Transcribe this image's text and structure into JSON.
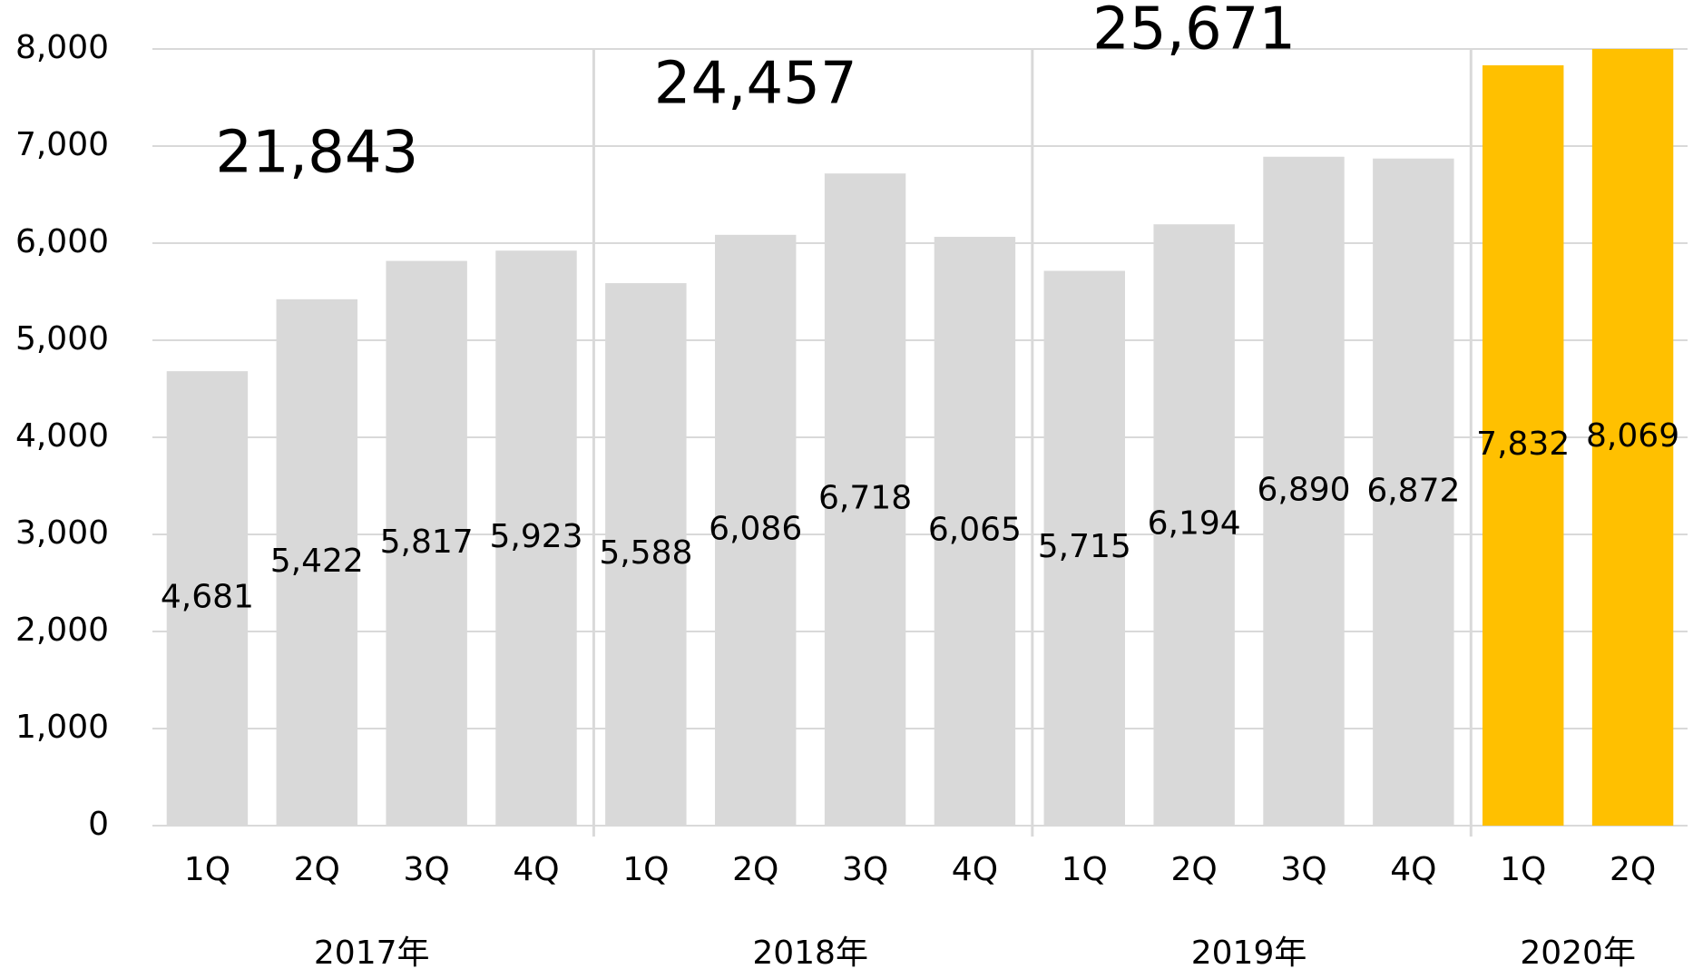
{
  "chart_data": {
    "type": "bar",
    "ylim": [
      0,
      8000
    ],
    "yticks": [
      0,
      {
        "value": 1000,
        "label": "1,000"
      },
      {
        "value": 2000,
        "label": "2,000"
      },
      {
        "value": 3000,
        "label": "3,000"
      },
      {
        "value": 4000,
        "label": "4,000"
      },
      {
        "value": 5000,
        "label": "5,000"
      },
      {
        "value": 6000,
        "label": "6,000"
      },
      {
        "value": 7000,
        "label": "7,000"
      },
      {
        "value": 8000,
        "label": "8,000"
      }
    ],
    "grid": true,
    "groups": [
      {
        "name": "2017年",
        "total": 21843,
        "total_label": "21,843",
        "color": "#d9d9d9",
        "categories": [
          "1Q",
          "2Q",
          "3Q",
          "4Q"
        ],
        "values": [
          4681,
          5422,
          5817,
          5923
        ],
        "value_labels": [
          "4,681",
          "5,422",
          "5,817",
          "5,923"
        ]
      },
      {
        "name": "2018年",
        "total": 24457,
        "total_label": "24,457",
        "color": "#d9d9d9",
        "categories": [
          "1Q",
          "2Q",
          "3Q",
          "4Q"
        ],
        "values": [
          5588,
          6086,
          6718,
          6065
        ],
        "value_labels": [
          "5,588",
          "6,086",
          "6,718",
          "6,065"
        ]
      },
      {
        "name": "2019年",
        "total": 25671,
        "total_label": "25,671",
        "color": "#d9d9d9",
        "categories": [
          "1Q",
          "2Q",
          "3Q",
          "4Q"
        ],
        "values": [
          5715,
          6194,
          6890,
          6872
        ],
        "value_labels": [
          "5,715",
          "6,194",
          "6,890",
          "6,872"
        ]
      },
      {
        "name": "2020年",
        "color": "#ffc000",
        "categories": [
          "1Q",
          "2Q"
        ],
        "values": [
          7832,
          8069
        ],
        "value_labels": [
          "7,832",
          "8,069"
        ]
      }
    ]
  }
}
